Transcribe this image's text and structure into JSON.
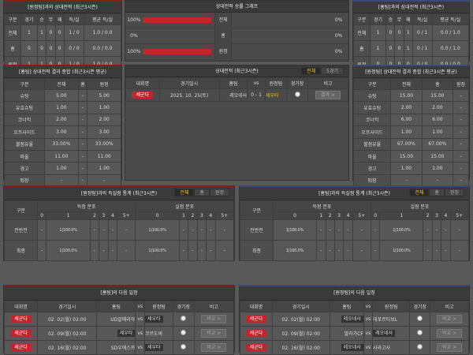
{
  "h2h_away": {
    "title": "[원정팀]과의 상대전적 (최근3시즌)",
    "headers": [
      "구분",
      "경기",
      "승",
      "무",
      "패",
      "득/실",
      "평균 득/실"
    ],
    "rows": [
      [
        "전체",
        "1",
        "1",
        "0",
        "0",
        "1 / 0",
        "1.0 / 0.0"
      ],
      [
        "홈",
        "0",
        "0",
        "0",
        "0",
        "0 / 0",
        "0.0 / 0.0"
      ],
      [
        "원정",
        "1",
        "1",
        "0",
        "0",
        "1 / 0",
        "1.0 / 0.0"
      ]
    ]
  },
  "h2h_home": {
    "title": "[홈팀]과의 상대전적 (최근3시즌)",
    "headers": [
      "구분",
      "경기",
      "승",
      "무",
      "패",
      "득/실",
      "평균 득/실"
    ],
    "rows": [
      [
        "전체",
        "1",
        "0",
        "0",
        "1",
        "0 / 1",
        "0.0 / 1.0"
      ],
      [
        "홈",
        "1",
        "0",
        "0",
        "1",
        "0 / 1",
        "0.0 / 1.0"
      ],
      [
        "원정",
        "0",
        "0",
        "0",
        "0",
        "0 / 0",
        "0.0 / 0.0"
      ]
    ]
  },
  "win_graph": {
    "title": "상대전적 승률 그래프",
    "rows": [
      {
        "left": "100%",
        "left_fill": 100,
        "label": "전체",
        "right": "0%",
        "right_fill": 0
      },
      {
        "left": "0%",
        "left_fill": 0,
        "label": "홈",
        "right": "0%",
        "right_fill": 0
      },
      {
        "left": "100%",
        "left_fill": 100,
        "label": "원정",
        "right": "0%",
        "right_fill": 0
      }
    ]
  },
  "stats_home": {
    "title": "[홈팀] 상대전적 결과 종합 (최근3시즌 평균)",
    "headers": [
      "구분",
      "전체",
      "홈",
      "원정"
    ],
    "rows": [
      [
        "슈팅",
        "5.00",
        "-",
        "5.00"
      ],
      [
        "유효슈팅",
        "1.00",
        "-",
        "1.00"
      ],
      [
        "코너킥",
        "2.00",
        "-",
        "2.00"
      ],
      [
        "오프사이드",
        "3.00",
        "-",
        "3.00"
      ],
      [
        "볼점유율",
        "33.00%",
        "-",
        "33.00%"
      ],
      [
        "파울",
        "11.00",
        "-",
        "11.00"
      ],
      [
        "경고",
        "1.00",
        "-",
        "1.00"
      ],
      [
        "퇴장",
        "-",
        "-",
        "-"
      ]
    ]
  },
  "stats_away": {
    "title": "[원정팀] 상대전적 결과 종합 (최근3시즌 평균)",
    "headers": [
      "구분",
      "전체",
      "홈",
      "원정"
    ],
    "rows": [
      [
        "슈팅",
        "15.00",
        "15.00",
        "-"
      ],
      [
        "유효슈팅",
        "2.00",
        "2.00",
        "-"
      ],
      [
        "코너킥",
        "6.00",
        "6.00",
        "-"
      ],
      [
        "오프사이드",
        "1.00",
        "1.00",
        "-"
      ],
      [
        "볼점유율",
        "67.00%",
        "67.00%",
        "-"
      ],
      [
        "파울",
        "15.00",
        "15.00",
        "-"
      ],
      [
        "경고",
        "1.00",
        "1.00",
        "-"
      ],
      [
        "퇴장",
        "-",
        "-",
        "-"
      ]
    ]
  },
  "h2h_matches": {
    "title": "상대전적 (최근3시즌)",
    "tabs": [
      "전체",
      "5경기"
    ],
    "headers": [
      "대회명",
      "경기일시",
      "홈팀",
      "vs",
      "원정팀",
      "경기장",
      "비고"
    ],
    "rows": [
      {
        "league": "세군다",
        "date": "2025. 10. 25(토)",
        "home": "레오네사",
        "score": "0 - 1",
        "away": "세우타",
        "action": "결과 >"
      }
    ]
  },
  "goals_away": {
    "title": "[원정팀]과의 득실점 통계 (최근3시즌)",
    "tabs": [
      "전체",
      "홈",
      "원정"
    ],
    "group1": "득점 분포",
    "group2": "실점 분포",
    "cols": [
      "0",
      "1",
      "2",
      "3",
      "4",
      "5+"
    ],
    "rowlabel": "구분",
    "rows": [
      {
        "label": "전반전",
        "cells": [
          "-",
          "1|100.0%",
          "-",
          "-",
          "-",
          "-",
          "1|100.0%",
          "-",
          "-",
          "-",
          "-",
          "-"
        ]
      },
      {
        "label": "최종",
        "cells": [
          "-",
          "1|100.0%",
          "-",
          "-",
          "-",
          "-",
          "1|100.0%",
          "-",
          "-",
          "-",
          "-",
          "-"
        ]
      }
    ]
  },
  "goals_home": {
    "title": "[홈팀]과의 득실점 통계 (최근3시즌)",
    "tabs": [
      "전체",
      "홈",
      "원정"
    ],
    "group1": "득점 분포",
    "group2": "실점 분포",
    "cols": [
      "0",
      "1",
      "2",
      "3",
      "4",
      "5+"
    ],
    "rowlabel": "구분",
    "rows": [
      {
        "label": "전반전",
        "cells": [
          "1|100.0%",
          "-",
          "-",
          "-",
          "-",
          "-",
          "-",
          "1|100.0%",
          "-",
          "-",
          "-",
          "-"
        ]
      },
      {
        "label": "최종",
        "cells": [
          "1|100.0%",
          "-",
          "-",
          "-",
          "-",
          "-",
          "-",
          "1|100.0%",
          "-",
          "-",
          "-",
          "-"
        ]
      }
    ]
  },
  "next_home": {
    "title": "[홈팀]의 다음 일정",
    "headers": [
      "대회명",
      "경기일시",
      "홈팀",
      "vs",
      "원정팀",
      "경기장",
      "비고"
    ],
    "rows": [
      {
        "league": "세군다",
        "date": "02. 02(월) 02:00",
        "home": "UD알메리아",
        "away": "세우타",
        "hl": "away",
        "action": "비교 >"
      },
      {
        "league": "세군다",
        "date": "02. 09(월) 02:00",
        "home": "세우타",
        "away": "코르도바",
        "hl": "home",
        "action": "비교 >"
      },
      {
        "league": "세군다",
        "date": "02. 16(월) 02:00",
        "home": "SD우에스카",
        "away": "세우타",
        "hl": "away",
        "action": "비교 >"
      }
    ]
  },
  "next_away": {
    "title": "[원정팀]의 다음 일정",
    "headers": [
      "대회명",
      "경기일시",
      "홈팀",
      "vs",
      "원정팀",
      "경기장",
      "비고"
    ],
    "rows": [
      {
        "league": "세군다",
        "date": "02. 02(월) 02:00",
        "home": "레오네사",
        "away": "데포르티보L",
        "hl": "home",
        "action": "비교 >"
      },
      {
        "league": "세군다",
        "date": "02. 09(월) 02:00",
        "home": "말라가CF",
        "away": "레오네사",
        "hl": "away",
        "action": "비교 >"
      },
      {
        "league": "세군다",
        "date": "02. 16(월) 02:00",
        "home": "레오네사",
        "away": "사라고사",
        "hl": "home",
        "action": "비교 >"
      }
    ]
  },
  "colors": {
    "accent_red": "#c0262b",
    "tab_active": "#f1c40f",
    "bg": "#595959"
  }
}
